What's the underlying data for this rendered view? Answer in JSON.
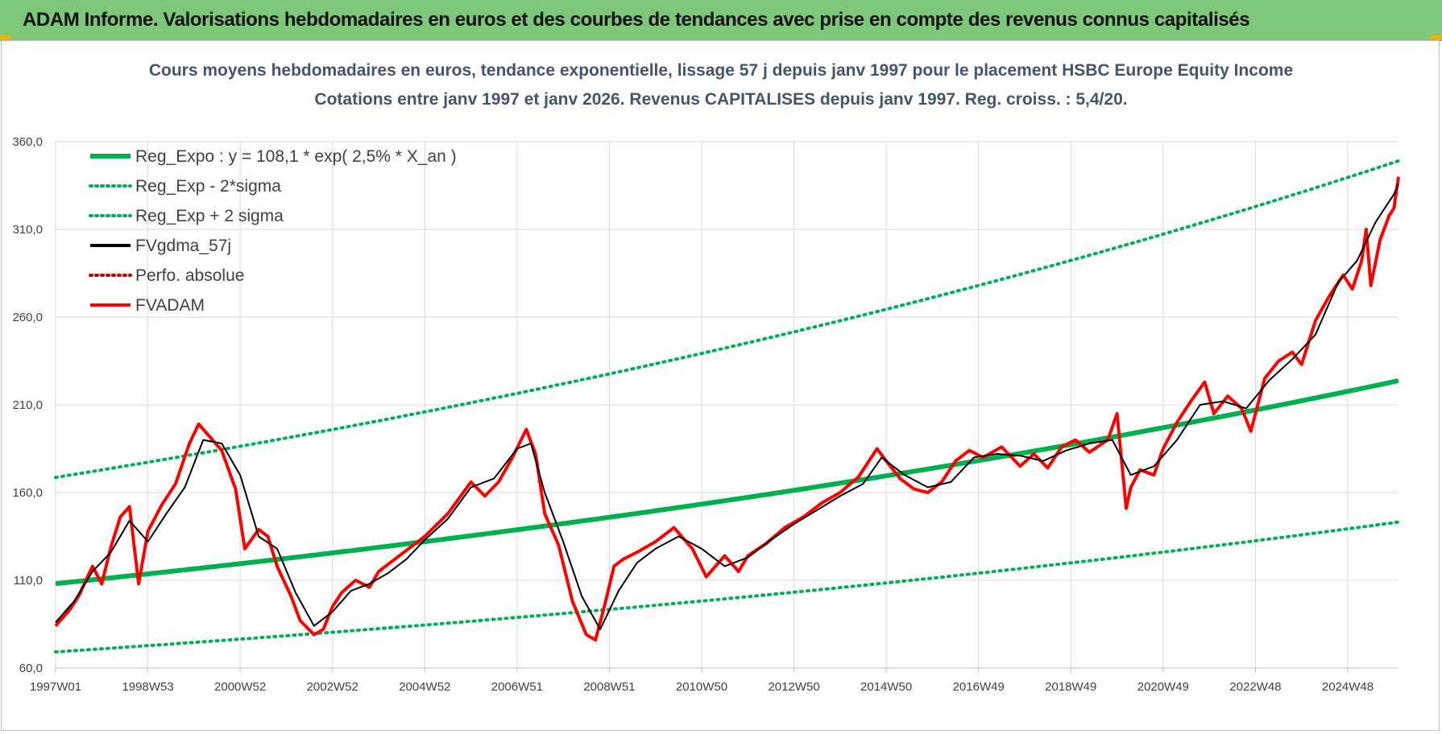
{
  "banner": {
    "title": "ADAM Informe. Valorisations hebdomadaires en euros et des courbes de tendances avec prise en compte des revenus connus capitalisés"
  },
  "colors": {
    "banner_bg": "#7dc67a",
    "trend": "#00b050",
    "smoothed": "#000000",
    "absolute_perf": "#c00000",
    "price": "#ff0000"
  },
  "chart_data": {
    "type": "line",
    "title": "Cours moyens hebdomadaires en euros, tendance exponentielle, lissage 57 j depuis janv 1997  pour le  placement HSBC Europe Equity Income",
    "subtitle": "Cotations entre janv 1997 et janv 2026. Revenus CAPITALISES depuis janv 1997. Reg. croiss. : 5,4/20.",
    "xlabel": "",
    "ylabel": "",
    "ylim": [
      60,
      360
    ],
    "yticks": [
      "60,0",
      "110,0",
      "160,0",
      "210,0",
      "260,0",
      "310,0",
      "360,0"
    ],
    "xlim": [
      1997.0,
      2026.1
    ],
    "xticks": [
      {
        "label": "1997W01",
        "value": 1997.0
      },
      {
        "label": "1998W53",
        "value": 1999.0
      },
      {
        "label": "2000W52",
        "value": 2001.0
      },
      {
        "label": "2002W52",
        "value": 2003.0
      },
      {
        "label": "2004W52",
        "value": 2005.0
      },
      {
        "label": "2006W51",
        "value": 2007.0
      },
      {
        "label": "2008W51",
        "value": 2009.0
      },
      {
        "label": "2010W50",
        "value": 2011.0
      },
      {
        "label": "2012W50",
        "value": 2013.0
      },
      {
        "label": "2014W50",
        "value": 2015.0
      },
      {
        "label": "2016W49",
        "value": 2017.0
      },
      {
        "label": "2018W49",
        "value": 2019.0
      },
      {
        "label": "2020W49",
        "value": 2021.0
      },
      {
        "label": "2022W48",
        "value": 2023.0
      },
      {
        "label": "2024W48",
        "value": 2025.0
      }
    ],
    "grid": true,
    "legend_position": "top-left",
    "legend": [
      {
        "label": "Reg_Expo : y = 108,1 * exp( 2,5% *  X_an )",
        "style": "solid-thick",
        "color": "#00b050"
      },
      {
        "label": "Reg_Exp - 2*sigma",
        "style": "dotted",
        "color": "#00b050"
      },
      {
        "label": "Reg_Exp + 2 sigma",
        "style": "dotted",
        "color": "#00b050"
      },
      {
        "label": "FVgdma_57j",
        "style": "solid",
        "color": "#000000"
      },
      {
        "label": "Perfo. absolue",
        "style": "dotted",
        "color": "#c00000"
      },
      {
        "label": "FVADAM",
        "style": "solid",
        "color": "#ff0000"
      }
    ],
    "regression": {
      "a": 108.1,
      "rate": 0.025,
      "lower_factor": 0.64,
      "upper_factor": 1.56
    },
    "series": [
      {
        "name": "FVADAM",
        "x": [
          1997.0,
          1997.3,
          1997.5,
          1997.8,
          1998.0,
          1998.2,
          1998.4,
          1998.6,
          1998.8,
          1999.0,
          1999.3,
          1999.6,
          1999.9,
          2000.1,
          2000.4,
          2000.6,
          2000.9,
          2001.1,
          2001.4,
          2001.6,
          2001.8,
          2002.1,
          2002.3,
          2002.6,
          2002.8,
          2003.0,
          2003.2,
          2003.5,
          2003.8,
          2004.0,
          2004.5,
          2005.0,
          2005.5,
          2006.0,
          2006.3,
          2006.6,
          2006.9,
          2007.2,
          2007.4,
          2007.6,
          2007.9,
          2008.2,
          2008.5,
          2008.7,
          2008.9,
          2009.1,
          2009.3,
          2009.6,
          2010.0,
          2010.4,
          2010.8,
          2011.1,
          2011.5,
          2011.8,
          2012.0,
          2012.4,
          2012.8,
          2013.2,
          2013.6,
          2014.0,
          2014.4,
          2014.8,
          2015.0,
          2015.3,
          2015.6,
          2015.9,
          2016.2,
          2016.5,
          2016.8,
          2017.1,
          2017.5,
          2017.9,
          2018.2,
          2018.5,
          2018.8,
          2019.1,
          2019.4,
          2019.8,
          2020.0,
          2020.2,
          2020.3,
          2020.5,
          2020.8,
          2021.0,
          2021.3,
          2021.6,
          2021.9,
          2022.1,
          2022.4,
          2022.7,
          2022.9,
          2023.2,
          2023.5,
          2023.8,
          2024.0,
          2024.3,
          2024.6,
          2024.9,
          2025.1,
          2025.3,
          2025.4,
          2025.5,
          2025.7,
          2025.9,
          2026.0,
          2026.1
        ],
        "y": [
          84,
          93,
          101,
          118,
          108,
          129,
          146,
          152,
          108,
          138,
          153,
          165,
          188,
          199,
          190,
          184,
          162,
          128,
          139,
          135,
          118,
          101,
          87,
          79,
          82,
          95,
          103,
          110,
          106,
          115,
          125,
          135,
          148,
          166,
          158,
          166,
          180,
          196,
          182,
          148,
          130,
          98,
          79,
          76,
          96,
          118,
          122,
          126,
          132,
          140,
          128,
          112,
          124,
          115,
          124,
          131,
          140,
          146,
          154,
          160,
          169,
          185,
          178,
          168,
          162,
          160,
          166,
          178,
          184,
          180,
          186,
          175,
          182,
          174,
          186,
          190,
          183,
          190,
          205,
          151,
          163,
          173,
          170,
          185,
          200,
          212,
          223,
          205,
          215,
          208,
          195,
          225,
          235,
          240,
          233,
          258,
          272,
          284,
          276,
          292,
          310,
          278,
          304,
          318,
          322,
          340
        ]
      },
      {
        "name": "FVgdma_57j",
        "x": [
          1997.0,
          1997.4,
          1997.8,
          1998.2,
          1998.6,
          1999.0,
          1999.4,
          1999.8,
          2000.2,
          2000.6,
          2001.0,
          2001.4,
          2001.8,
          2002.2,
          2002.6,
          2003.0,
          2003.4,
          2003.8,
          2004.2,
          2004.6,
          2005.0,
          2005.5,
          2006.0,
          2006.5,
          2007.0,
          2007.3,
          2007.6,
          2008.0,
          2008.4,
          2008.8,
          2009.2,
          2009.6,
          2010.0,
          2010.5,
          2011.0,
          2011.5,
          2012.0,
          2012.5,
          2013.0,
          2013.5,
          2014.0,
          2014.5,
          2014.9,
          2015.4,
          2015.9,
          2016.4,
          2016.9,
          2017.4,
          2017.9,
          2018.4,
          2018.9,
          2019.4,
          2019.9,
          2020.3,
          2020.8,
          2021.3,
          2021.8,
          2022.3,
          2022.8,
          2023.3,
          2023.8,
          2024.3,
          2024.8,
          2025.2,
          2025.6,
          2026.0,
          2026.1
        ],
        "y": [
          86,
          98,
          115,
          126,
          144,
          132,
          148,
          163,
          190,
          188,
          170,
          135,
          128,
          103,
          84,
          92,
          104,
          108,
          114,
          122,
          133,
          145,
          163,
          168,
          185,
          188,
          160,
          132,
          101,
          82,
          104,
          120,
          128,
          135,
          128,
          118,
          123,
          133,
          142,
          150,
          158,
          165,
          180,
          170,
          163,
          166,
          180,
          182,
          181,
          178,
          184,
          188,
          190,
          170,
          175,
          190,
          210,
          212,
          208,
          224,
          236,
          250,
          280,
          292,
          314,
          330,
          336
        ]
      }
    ]
  }
}
